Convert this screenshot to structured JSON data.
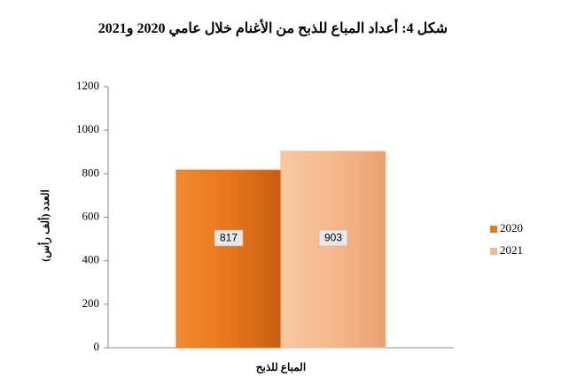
{
  "chart_data": {
    "type": "bar",
    "title": "شكل 4: أعداد المباع للذبح من الأغنام خلال عامي 2020 و2021",
    "y_label": "العدد (ألف رأس)",
    "categories": [
      "المباع للذبح"
    ],
    "series": [
      {
        "name": "2020",
        "color": "#e8761c",
        "values": [
          817
        ]
      },
      {
        "name": "2021",
        "color": "#f6b88c",
        "values": [
          903
        ]
      }
    ],
    "ylim": [
      0,
      1200
    ],
    "yticks": [
      0,
      200,
      400,
      600,
      800,
      1000,
      1200
    ],
    "grid": false,
    "legend": "right"
  }
}
